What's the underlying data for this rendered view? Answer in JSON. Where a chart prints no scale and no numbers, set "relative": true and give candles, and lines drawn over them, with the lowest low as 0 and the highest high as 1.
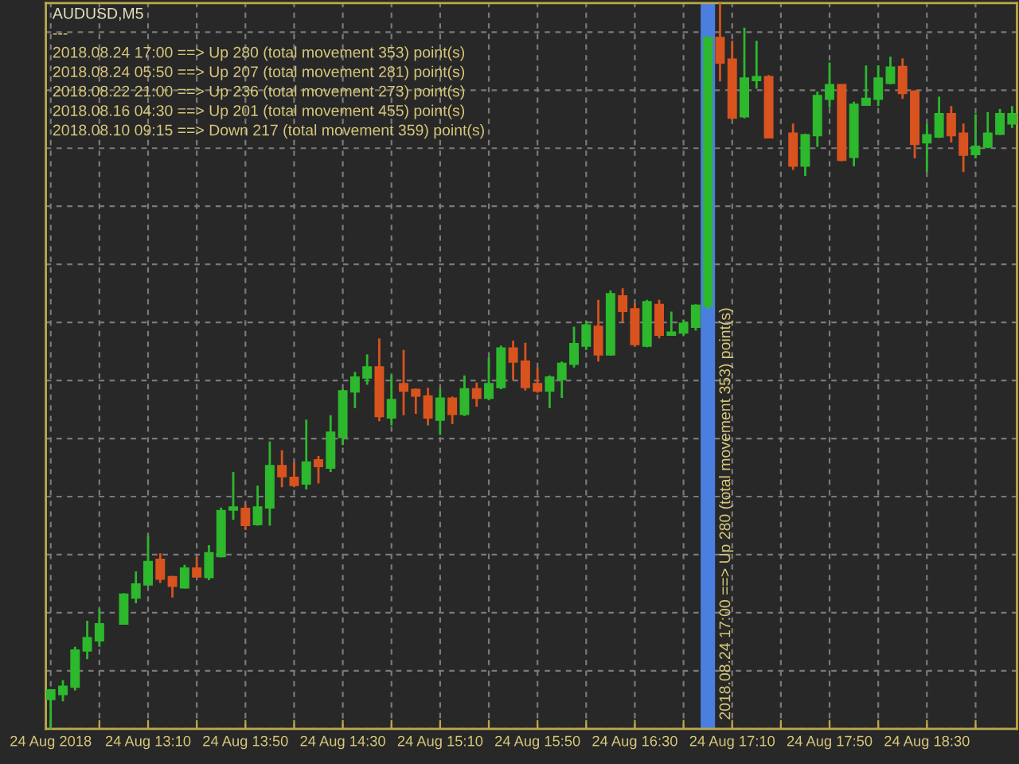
{
  "chart_data": {
    "type": "candlestick",
    "title": "AUDUSD,M5",
    "annotations": [
      "---",
      "2018.08.24 17:00 ==> Up 280 (total movement 353) point(s)",
      "2018.08.24 05:50 ==> Up 207 (total movement 281) point(s)",
      "2018.08.22 21:00 ==> Up 236 (total movement 273) point(s)",
      "2018.08.16 04:30 ==> Up 201 (total movement 455) point(s)",
      "2018.08.10 09:15 ==> Down 217 (total movement 359) point(s)"
    ],
    "x": [
      "2018-08-24T12:30",
      "2018-08-24T12:35",
      "2018-08-24T12:40",
      "2018-08-24T12:45",
      "2018-08-24T12:50",
      "2018-08-24T13:00",
      "2018-08-24T13:05",
      "2018-08-24T13:10",
      "2018-08-24T13:15",
      "2018-08-24T13:20",
      "2018-08-24T13:25",
      "2018-08-24T13:30",
      "2018-08-24T13:35",
      "2018-08-24T13:40",
      "2018-08-24T13:45",
      "2018-08-24T13:50",
      "2018-08-24T13:55",
      "2018-08-24T14:00",
      "2018-08-24T14:05",
      "2018-08-24T14:10",
      "2018-08-24T14:15",
      "2018-08-24T14:20",
      "2018-08-24T14:25",
      "2018-08-24T14:30",
      "2018-08-24T14:35",
      "2018-08-24T14:40",
      "2018-08-24T14:45",
      "2018-08-24T14:50",
      "2018-08-24T14:55",
      "2018-08-24T15:00",
      "2018-08-24T15:05",
      "2018-08-24T15:10",
      "2018-08-24T15:15",
      "2018-08-24T15:20",
      "2018-08-24T15:25",
      "2018-08-24T15:30",
      "2018-08-24T15:35",
      "2018-08-24T15:40",
      "2018-08-24T15:45",
      "2018-08-24T15:50",
      "2018-08-24T15:55",
      "2018-08-24T16:00",
      "2018-08-24T16:05",
      "2018-08-24T16:10",
      "2018-08-24T16:15",
      "2018-08-24T16:20",
      "2018-08-24T16:25",
      "2018-08-24T16:30",
      "2018-08-24T16:35",
      "2018-08-24T16:40",
      "2018-08-24T16:45",
      "2018-08-24T16:50",
      "2018-08-24T16:55",
      "2018-08-24T17:00",
      "2018-08-24T17:05",
      "2018-08-24T17:10",
      "2018-08-24T17:15",
      "2018-08-24T17:20",
      "2018-08-24T17:25",
      "2018-08-24T17:35",
      "2018-08-24T17:40",
      "2018-08-24T17:45",
      "2018-08-24T17:50",
      "2018-08-24T17:55",
      "2018-08-24T18:00",
      "2018-08-24T18:05",
      "2018-08-24T18:10",
      "2018-08-24T18:15",
      "2018-08-24T18:20",
      "2018-08-24T18:25",
      "2018-08-24T18:30",
      "2018-08-24T18:35",
      "2018-08-24T18:40",
      "2018-08-24T18:45",
      "2018-08-24T18:50",
      "2018-08-24T18:55",
      "2018-08-24T19:00",
      "2018-08-24T19:05"
    ],
    "ohlc": [
      [
        0.041,
        0.055,
        0.0,
        0.053
      ],
      [
        0.048,
        0.067,
        0.038,
        0.058
      ],
      [
        0.058,
        0.113,
        0.053,
        0.108
      ],
      [
        0.108,
        0.149,
        0.096,
        0.125
      ],
      [
        0.122,
        0.165,
        0.113,
        0.144
      ],
      [
        0.145,
        0.187,
        0.144,
        0.185
      ],
      [
        0.181,
        0.217,
        0.173,
        0.199
      ],
      [
        0.199,
        0.266,
        0.197,
        0.23
      ],
      [
        0.233,
        0.242,
        0.201,
        0.207
      ],
      [
        0.209,
        0.211,
        0.181,
        0.197
      ],
      [
        0.195,
        0.226,
        0.193,
        0.221
      ],
      [
        0.221,
        0.237,
        0.209,
        0.21
      ],
      [
        0.209,
        0.253,
        0.205,
        0.242
      ],
      [
        0.238,
        0.305,
        0.236,
        0.3
      ],
      [
        0.302,
        0.354,
        0.288,
        0.305
      ],
      [
        0.303,
        0.309,
        0.274,
        0.281
      ],
      [
        0.282,
        0.335,
        0.28,
        0.305
      ],
      [
        0.305,
        0.396,
        0.28,
        0.362
      ],
      [
        0.362,
        0.384,
        0.333,
        0.348
      ],
      [
        0.346,
        0.367,
        0.333,
        0.336
      ],
      [
        0.338,
        0.426,
        0.33,
        0.367
      ],
      [
        0.37,
        0.376,
        0.338,
        0.362
      ],
      [
        0.36,
        0.432,
        0.354,
        0.408
      ],
      [
        0.402,
        0.468,
        0.391,
        0.465
      ],
      [
        0.465,
        0.492,
        0.442,
        0.484
      ],
      [
        0.484,
        0.516,
        0.474,
        0.498
      ],
      [
        0.498,
        0.538,
        0.424,
        0.431
      ],
      [
        0.429,
        0.488,
        0.418,
        0.453
      ],
      [
        0.475,
        0.522,
        0.432,
        0.466
      ],
      [
        0.467,
        0.469,
        0.434,
        0.459
      ],
      [
        0.458,
        0.47,
        0.418,
        0.429
      ],
      [
        0.426,
        0.468,
        0.405,
        0.455
      ],
      [
        0.455,
        0.458,
        0.42,
        0.434
      ],
      [
        0.434,
        0.487,
        0.431,
        0.468
      ],
      [
        0.468,
        0.477,
        0.444,
        0.456
      ],
      [
        0.456,
        0.512,
        0.453,
        0.475
      ],
      [
        0.471,
        0.528,
        0.468,
        0.524
      ],
      [
        0.524,
        0.535,
        0.48,
        0.506
      ],
      [
        0.506,
        0.532,
        0.466,
        0.471
      ],
      [
        0.475,
        0.498,
        0.463,
        0.466
      ],
      [
        0.466,
        0.487,
        0.442,
        0.484
      ],
      [
        0.482,
        0.506,
        0.456,
        0.503
      ],
      [
        0.503,
        0.554,
        0.498,
        0.53
      ],
      [
        0.528,
        0.562,
        0.522,
        0.556
      ],
      [
        0.554,
        0.591,
        0.506,
        0.516
      ],
      [
        0.516,
        0.604,
        0.514,
        0.599
      ],
      [
        0.596,
        0.607,
        0.56,
        0.576
      ],
      [
        0.578,
        0.586,
        0.527,
        0.53
      ],
      [
        0.528,
        0.591,
        0.526,
        0.588
      ],
      [
        0.584,
        0.591,
        0.538,
        0.543
      ],
      [
        0.543,
        0.575,
        0.542,
        0.546
      ],
      [
        0.546,
        0.564,
        0.542,
        0.558
      ],
      [
        0.554,
        0.585,
        0.549,
        0.583
      ],
      [
        0.583,
        0.954,
        0.578,
        0.952
      ],
      [
        0.952,
        1.0,
        0.892,
        0.918
      ],
      [
        0.922,
        0.948,
        0.84,
        0.842
      ],
      [
        0.844,
        0.966,
        0.841,
        0.896
      ],
      [
        0.894,
        0.948,
        0.882,
        0.898
      ],
      [
        0.898,
        0.901,
        0.814,
        0.815
      ],
      [
        0.82,
        0.834,
        0.77,
        0.776
      ],
      [
        0.776,
        0.82,
        0.762,
        0.818
      ],
      [
        0.818,
        0.878,
        0.802,
        0.872
      ],
      [
        0.868,
        0.918,
        0.856,
        0.887
      ],
      [
        0.887,
        0.888,
        0.782,
        0.784
      ],
      [
        0.788,
        0.864,
        0.775,
        0.86
      ],
      [
        0.86,
        0.914,
        0.859,
        0.868
      ],
      [
        0.868,
        0.914,
        0.858,
        0.896
      ],
      [
        0.89,
        0.926,
        0.888,
        0.911
      ],
      [
        0.912,
        0.924,
        0.868,
        0.876
      ],
      [
        0.878,
        0.88,
        0.786,
        0.806
      ],
      [
        0.808,
        0.834,
        0.767,
        0.818
      ],
      [
        0.816,
        0.871,
        0.814,
        0.847
      ],
      [
        0.847,
        0.858,
        0.808,
        0.818
      ],
      [
        0.82,
        0.834,
        0.767,
        0.791
      ],
      [
        0.792,
        0.847,
        0.786,
        0.802
      ],
      [
        0.802,
        0.85,
        0.8,
        0.82
      ],
      [
        0.82,
        0.854,
        0.818,
        0.847
      ],
      [
        0.834,
        0.858,
        0.828,
        0.847
      ]
    ],
    "colors": [
      "#2db82d",
      "#2db82d",
      "#2db82d",
      "#2db82d",
      "#2db82d",
      "#2db82d",
      "#2db82d",
      "#2db82d",
      "#d9531e",
      "#d9531e",
      "#2db82d",
      "#d9531e",
      "#2db82d",
      "#2db82d",
      "#2db82d",
      "#d9531e",
      "#2db82d",
      "#2db82d",
      "#d9531e",
      "#d9531e",
      "#2db82d",
      "#d9531e",
      "#2db82d",
      "#2db82d",
      "#2db82d",
      "#2db82d",
      "#d9531e",
      "#2db82d",
      "#d9531e",
      "#d9531e",
      "#d9531e",
      "#2db82d",
      "#d9531e",
      "#2db82d",
      "#d9531e",
      "#2db82d",
      "#2db82d",
      "#d9531e",
      "#d9531e",
      "#d9531e",
      "#2db82d",
      "#2db82d",
      "#2db82d",
      "#2db82d",
      "#d9531e",
      "#2db82d",
      "#d9531e",
      "#d9531e",
      "#2db82d",
      "#d9531e",
      "#2db82d",
      "#2db82d",
      "#2db82d",
      "#2db82d",
      "#d9531e",
      "#d9531e",
      "#2db82d",
      "#2db82d",
      "#d9531e",
      "#d9531e",
      "#2db82d",
      "#2db82d",
      "#2db82d",
      "#d9531e",
      "#2db82d",
      "#2db82d",
      "#2db82d",
      "#2db82d",
      "#d9531e",
      "#d9531e",
      "#2db82d",
      "#2db82d",
      "#d9531e",
      "#d9531e",
      "#2db82d",
      "#2db82d",
      "#2db82d",
      "#2db82d"
    ],
    "relative": true,
    "xlim": [
      "2018-08-24T12:28",
      "2018-08-24T19:07"
    ],
    "xticks": [
      {
        "value": "2018-08-24T12:30",
        "label": "24 Aug 2018"
      },
      {
        "value": "2018-08-24T12:50",
        "label": null
      },
      {
        "value": "2018-08-24T13:10",
        "label": "24 Aug 13:10"
      },
      {
        "value": "2018-08-24T13:30",
        "label": null
      },
      {
        "value": "2018-08-24T13:50",
        "label": "24 Aug 13:50"
      },
      {
        "value": "2018-08-24T14:10",
        "label": null
      },
      {
        "value": "2018-08-24T14:30",
        "label": "24 Aug 14:30"
      },
      {
        "value": "2018-08-24T14:50",
        "label": null
      },
      {
        "value": "2018-08-24T15:10",
        "label": "24 Aug 15:10"
      },
      {
        "value": "2018-08-24T15:30",
        "label": null
      },
      {
        "value": "2018-08-24T15:50",
        "label": "24 Aug 15:50"
      },
      {
        "value": "2018-08-24T16:10",
        "label": null
      },
      {
        "value": "2018-08-24T16:30",
        "label": "24 Aug 16:30"
      },
      {
        "value": "2018-08-24T16:50",
        "label": null
      },
      {
        "value": "2018-08-24T17:10",
        "label": "24 Aug 17:10"
      },
      {
        "value": "2018-08-24T17:30",
        "label": null
      },
      {
        "value": "2018-08-24T17:50",
        "label": "24 Aug 17:50"
      },
      {
        "value": "2018-08-24T18:10",
        "label": null
      },
      {
        "value": "2018-08-24T18:30",
        "label": "24 Aug 18:30"
      },
      {
        "value": "2018-08-24T18:50",
        "label": null
      }
    ],
    "grid": true,
    "ref_lines": [
      {
        "axis": "x",
        "value": "2018-08-24T17:00",
        "label": "2018.08.24 17:00 ==> Up 280 (total movement 353) point(s)",
        "color": "#4a7fe0"
      }
    ]
  }
}
